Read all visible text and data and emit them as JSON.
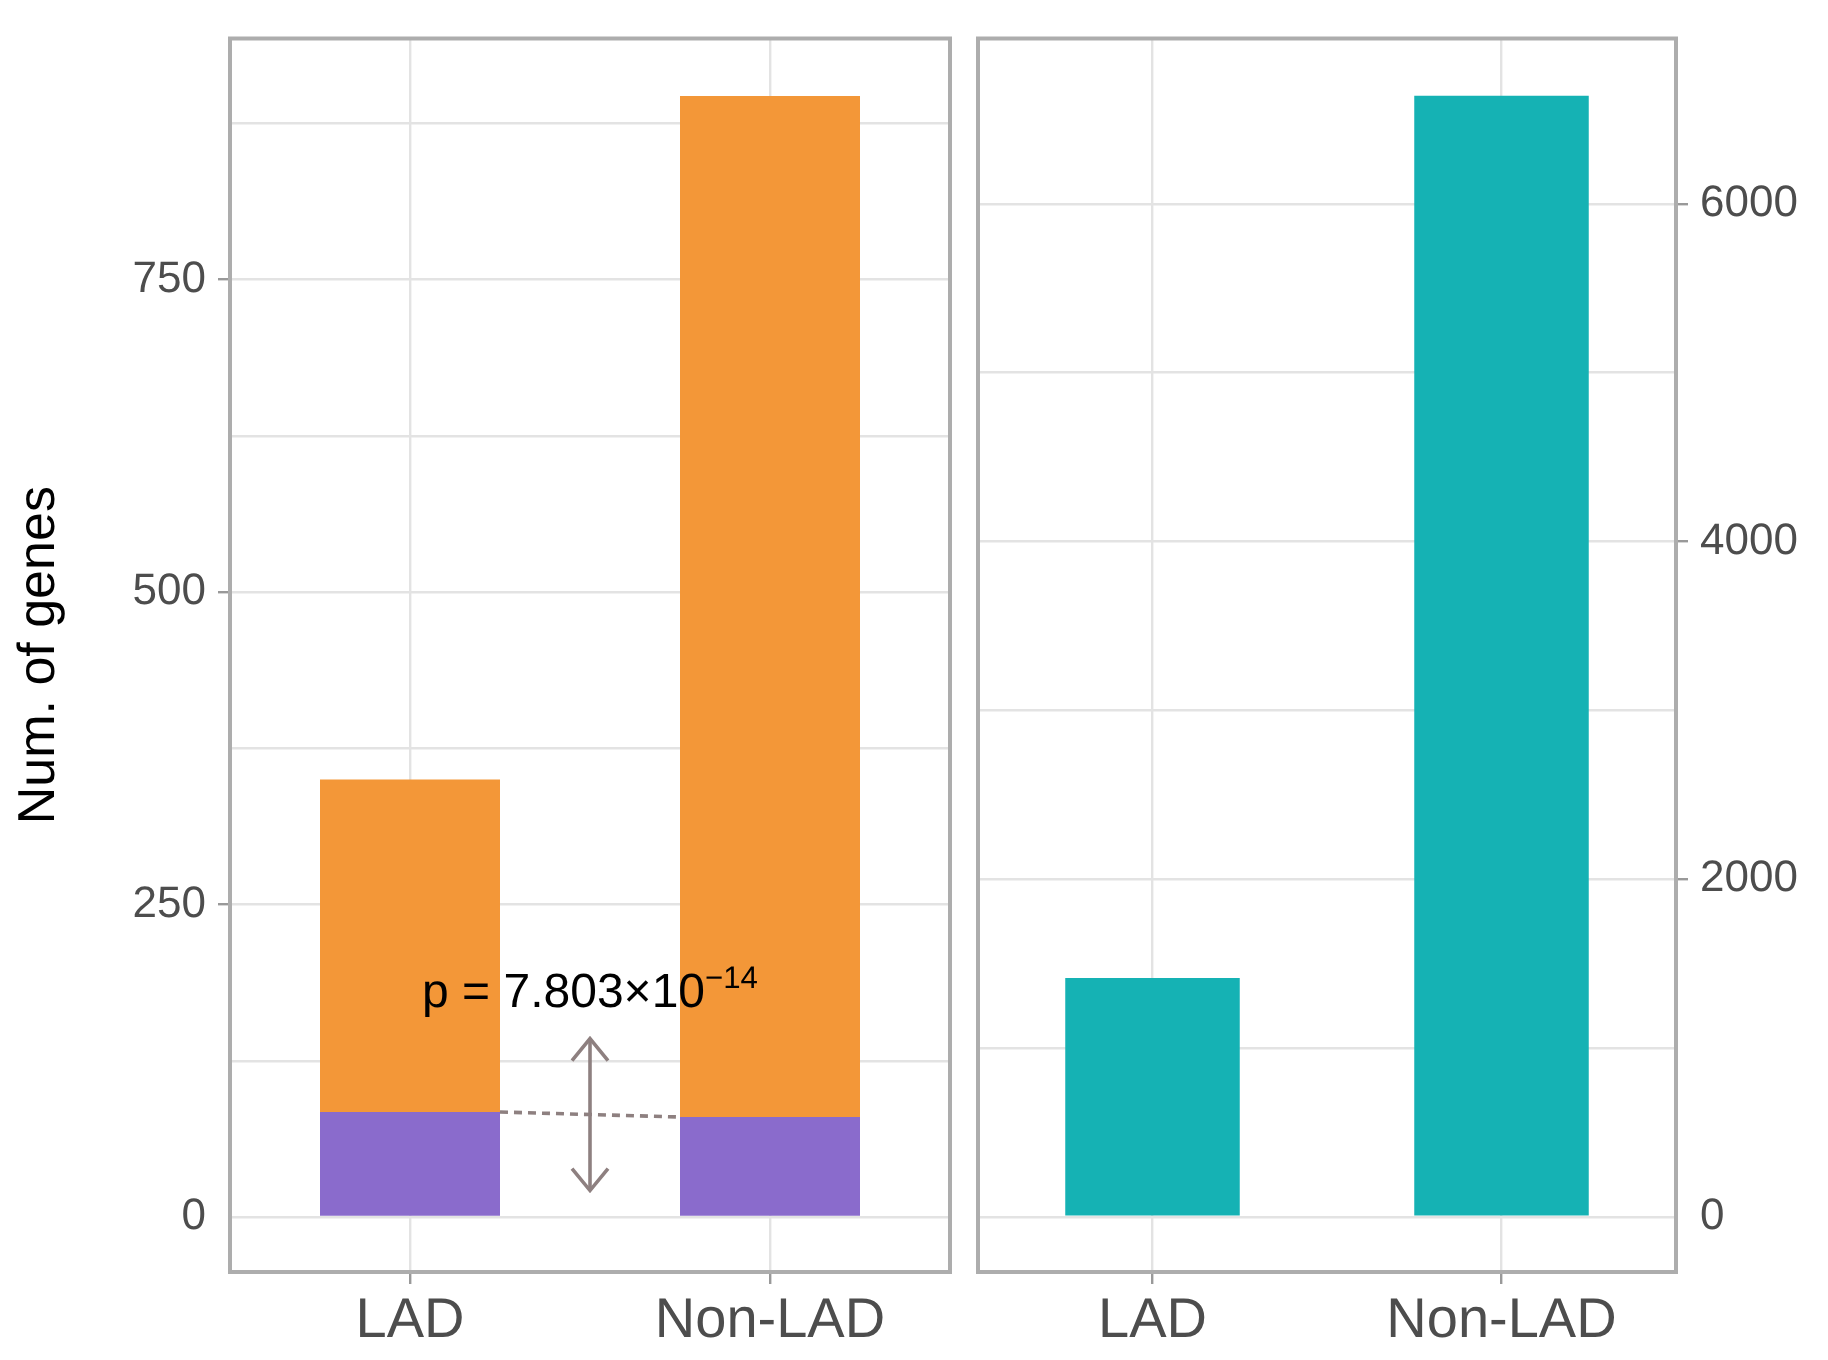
{
  "chart_data": [
    {
      "type": "bar",
      "stacked": true,
      "ylabel": "Num. of genes",
      "categories": [
        "LAD",
        "Non-LAD"
      ],
      "series": [
        {
          "color": "#8a6bcc",
          "values": [
            84,
            80
          ]
        },
        {
          "color": "#f39738",
          "values": [
            266,
            817
          ]
        }
      ],
      "ylim": [
        -44,
        943
      ],
      "yticks": [
        0,
        {
          "value": 125,
          "label": null
        },
        250,
        {
          "value": 375,
          "label": null
        },
        500,
        {
          "value": 625,
          "label": null
        },
        750,
        {
          "value": 875,
          "label": null
        }
      ],
      "grid": true,
      "annotations": [
        "p = 7.803×10$^{−14}$"
      ]
    },
    {
      "type": "bar",
      "categories": [
        "LAD",
        "Non-LAD"
      ],
      "series": [
        {
          "color": "#15b2b4",
          "values": [
            1415,
            6640
          ],
          "axis": "y2"
        }
      ],
      "y2lim": [
        -327,
        6980
      ],
      "y2ticks": [
        0,
        {
          "value": 1000,
          "label": null
        },
        2000,
        {
          "value": 3000,
          "label": null
        },
        4000,
        {
          "value": 5000,
          "label": null
        },
        6000
      ],
      "grid": true
    }
  ]
}
